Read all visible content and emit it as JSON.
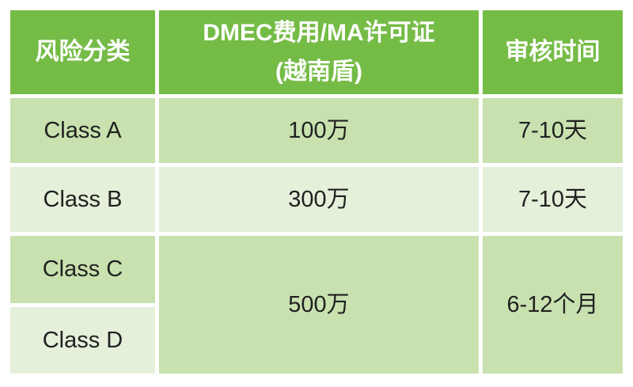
{
  "table": {
    "header": {
      "risk_class": "风险分类",
      "fee_line1": "DMEC费用/MA许可证",
      "fee_line2": "(越南盾)",
      "review_time": "审核时间"
    },
    "rows": {
      "a": {
        "label": "Class A",
        "fee": "100万",
        "time": "7-10天"
      },
      "b": {
        "label": "Class B",
        "fee": "300万",
        "time": "7-10天"
      },
      "c": {
        "label": "Class C"
      },
      "d": {
        "label": "Class D"
      },
      "cd_merged": {
        "fee": "500万",
        "time": "6-12个月"
      }
    },
    "colors": {
      "header_bg": "#75BC47",
      "header_text": "#FFFFFF",
      "row_dark_bg": "#C8E1AF",
      "row_light_bg": "#E4F0DA",
      "cell_text": "#212121",
      "gap": "#FFFFFF"
    }
  }
}
